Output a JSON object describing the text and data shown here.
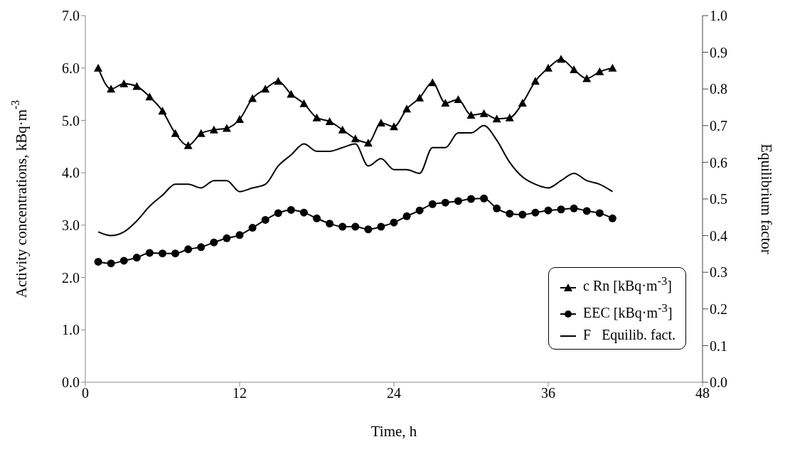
{
  "chart_data": {
    "type": "line",
    "xlabel": "Time, h",
    "ylabel": "Activity concentrations, kBq·m$^{-3}$",
    "y2label": "Equilibrium factor",
    "x": [
      1,
      2,
      3,
      4,
      5,
      6,
      7,
      8,
      9,
      10,
      11,
      12,
      13,
      14,
      15,
      16,
      17,
      18,
      19,
      20,
      21,
      22,
      23,
      24,
      25,
      26,
      27,
      28,
      29,
      30,
      31,
      32,
      33,
      34,
      35,
      36,
      37,
      38,
      39,
      40,
      41
    ],
    "series": [
      {
        "name": "c Rn [kBq·m$^{-3}$]",
        "color": "#000000",
        "marker": "triangle",
        "values": [
          6.0,
          5.6,
          5.7,
          5.65,
          5.45,
          5.18,
          4.75,
          4.52,
          4.75,
          4.82,
          4.85,
          5.02,
          5.42,
          5.6,
          5.75,
          5.5,
          5.32,
          5.05,
          4.98,
          4.82,
          4.65,
          4.57,
          4.95,
          4.88,
          5.22,
          5.43,
          5.72,
          5.33,
          5.4,
          5.1,
          5.13,
          5.03,
          5.05,
          5.33,
          5.75,
          6.0,
          6.17,
          5.97,
          5.8,
          5.93,
          6.0
        ]
      },
      {
        "name": "EEC [kBq·m$^{-3}$]",
        "color": "#000000",
        "marker": "circle",
        "values": [
          2.3,
          2.27,
          2.32,
          2.38,
          2.47,
          2.46,
          2.46,
          2.54,
          2.58,
          2.67,
          2.75,
          2.81,
          2.95,
          3.1,
          3.23,
          3.29,
          3.24,
          3.13,
          3.03,
          2.97,
          2.97,
          2.92,
          2.97,
          3.05,
          3.17,
          3.28,
          3.4,
          3.43,
          3.46,
          3.5,
          3.51,
          3.32,
          3.22,
          3.2,
          3.24,
          3.28,
          3.3,
          3.32,
          3.27,
          3.23,
          3.13
        ]
      },
      {
        "name": "F   Equilib. fact.",
        "color": "#000000",
        "marker": "none",
        "axis": "y2",
        "values": [
          0.41,
          0.4,
          0.41,
          0.44,
          0.48,
          0.51,
          0.54,
          0.54,
          0.53,
          0.55,
          0.55,
          0.52,
          0.53,
          0.54,
          0.59,
          0.62,
          0.65,
          0.63,
          0.63,
          0.64,
          0.65,
          0.59,
          0.61,
          0.58,
          0.58,
          0.57,
          0.64,
          0.64,
          0.68,
          0.68,
          0.7,
          0.66,
          0.6,
          0.56,
          0.54,
          0.53,
          0.55,
          0.57,
          0.55,
          0.54,
          0.52
        ]
      }
    ],
    "xlim": [
      0,
      48
    ],
    "xticks": [
      0,
      12,
      24,
      36,
      48
    ],
    "ylim": [
      0,
      7
    ],
    "yticks": [
      {
        "value": 0,
        "label": "0.0"
      },
      {
        "value": 1,
        "label": "1.0"
      },
      {
        "value": 2,
        "label": "2.0"
      },
      {
        "value": 3,
        "label": "3.0"
      },
      {
        "value": 4,
        "label": "4.0"
      },
      {
        "value": 5,
        "label": "5.0"
      },
      {
        "value": 6,
        "label": "6.0"
      },
      {
        "value": 7,
        "label": "7.0"
      }
    ],
    "y2lim": [
      0,
      1
    ],
    "y2ticks": [
      {
        "value": 0,
        "label": "0.0"
      },
      0.1,
      0.2,
      0.3,
      0.4,
      0.5,
      0.6,
      0.7,
      0.8,
      0.9,
      {
        "value": 1,
        "label": "1.0"
      }
    ],
    "grid": false,
    "legend": "bottom right",
    "line_style": "solid"
  }
}
